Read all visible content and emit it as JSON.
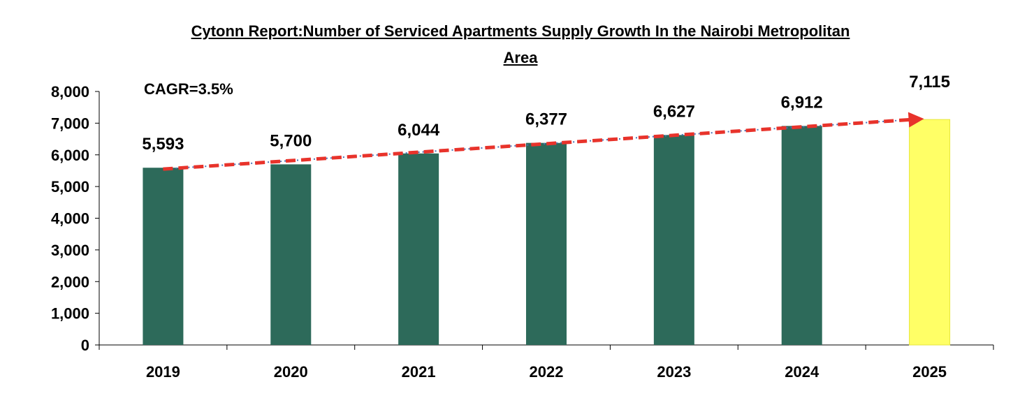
{
  "chart_data": {
    "type": "bar",
    "title_line1": "Cytonn Report:Number of Serviced Apartments Supply Growth In the Nairobi Metropolitan",
    "title_line2": "Area",
    "categories": [
      "2019",
      "2020",
      "2021",
      "2022",
      "2023",
      "2024",
      "2025"
    ],
    "values": [
      5593,
      5700,
      6044,
      6377,
      6627,
      6912,
      7115
    ],
    "value_labels": [
      "5,593",
      "5,700",
      "6,044",
      "6,377",
      "6,627",
      "6,912",
      "7,115"
    ],
    "yticks": [
      0,
      1000,
      2000,
      3000,
      4000,
      5000,
      6000,
      7000,
      8000
    ],
    "ytick_labels": [
      "0",
      "1,000",
      "2,000",
      "3,000",
      "4,000",
      "5,000",
      "6,000",
      "7,000",
      "8,000"
    ],
    "ylim": [
      0,
      8000
    ],
    "xlabel": "",
    "ylabel": "",
    "annotation": "CAGR=3.5%",
    "trendline": {
      "start_value": 5550,
      "end_value": 7130,
      "style": "dashed arrow"
    },
    "grid": false,
    "legend": "none",
    "colors": {
      "bar": "#2d6a5a",
      "highlight_bar": "#ffff66",
      "highlight_bar_stroke": "#e6e63c",
      "trend_dash": "#e8332b",
      "trend_dots": "#4a6fb5",
      "axis": "#000000"
    },
    "highlight_index": 6
  }
}
